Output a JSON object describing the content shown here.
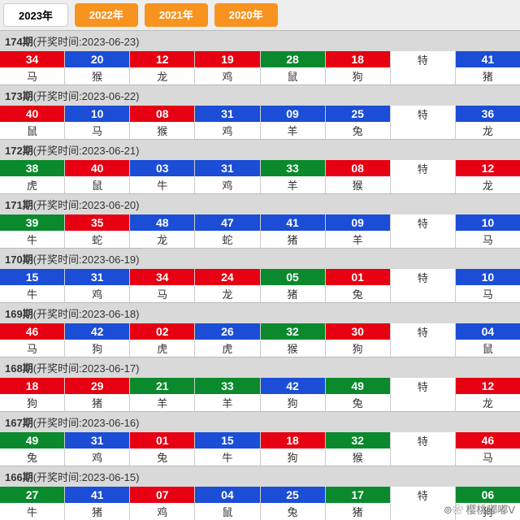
{
  "tabs": [
    {
      "label": "2023年",
      "active": true
    },
    {
      "label": "2022年",
      "active": false
    },
    {
      "label": "2021年",
      "active": false
    },
    {
      "label": "2020年",
      "active": false
    }
  ],
  "special_label": "特",
  "watermark": "⊚❀ 樱桃嘟嘟V",
  "colors": {
    "red": "#e60012",
    "blue": "#1b4dd6",
    "green": "#0a8a2d"
  },
  "issues": [
    {
      "issue": "174期",
      "date": "2023-06-23",
      "numbers": [
        {
          "n": "34",
          "c": "red",
          "z": "马"
        },
        {
          "n": "20",
          "c": "blue",
          "z": "猴"
        },
        {
          "n": "12",
          "c": "red",
          "z": "龙"
        },
        {
          "n": "19",
          "c": "red",
          "z": "鸡"
        },
        {
          "n": "28",
          "c": "green",
          "z": "鼠"
        },
        {
          "n": "18",
          "c": "red",
          "z": "狗"
        }
      ],
      "special": {
        "n": "41",
        "c": "blue",
        "z": "猪"
      }
    },
    {
      "issue": "173期",
      "date": "2023-06-22",
      "numbers": [
        {
          "n": "40",
          "c": "red",
          "z": "鼠"
        },
        {
          "n": "10",
          "c": "blue",
          "z": "马"
        },
        {
          "n": "08",
          "c": "red",
          "z": "猴"
        },
        {
          "n": "31",
          "c": "blue",
          "z": "鸡"
        },
        {
          "n": "09",
          "c": "blue",
          "z": "羊"
        },
        {
          "n": "25",
          "c": "blue",
          "z": "兔"
        }
      ],
      "special": {
        "n": "36",
        "c": "blue",
        "z": "龙"
      }
    },
    {
      "issue": "172期",
      "date": "2023-06-21",
      "numbers": [
        {
          "n": "38",
          "c": "green",
          "z": "虎"
        },
        {
          "n": "40",
          "c": "red",
          "z": "鼠"
        },
        {
          "n": "03",
          "c": "blue",
          "z": "牛"
        },
        {
          "n": "31",
          "c": "blue",
          "z": "鸡"
        },
        {
          "n": "33",
          "c": "green",
          "z": "羊"
        },
        {
          "n": "08",
          "c": "red",
          "z": "猴"
        }
      ],
      "special": {
        "n": "12",
        "c": "red",
        "z": "龙"
      }
    },
    {
      "issue": "171期",
      "date": "2023-06-20",
      "numbers": [
        {
          "n": "39",
          "c": "green",
          "z": "牛"
        },
        {
          "n": "35",
          "c": "red",
          "z": "蛇"
        },
        {
          "n": "48",
          "c": "blue",
          "z": "龙"
        },
        {
          "n": "47",
          "c": "blue",
          "z": "蛇"
        },
        {
          "n": "41",
          "c": "blue",
          "z": "猪"
        },
        {
          "n": "09",
          "c": "blue",
          "z": "羊"
        }
      ],
      "special": {
        "n": "10",
        "c": "blue",
        "z": "马"
      }
    },
    {
      "issue": "170期",
      "date": "2023-06-19",
      "numbers": [
        {
          "n": "15",
          "c": "blue",
          "z": "牛"
        },
        {
          "n": "31",
          "c": "blue",
          "z": "鸡"
        },
        {
          "n": "34",
          "c": "red",
          "z": "马"
        },
        {
          "n": "24",
          "c": "red",
          "z": "龙"
        },
        {
          "n": "05",
          "c": "green",
          "z": "猪"
        },
        {
          "n": "01",
          "c": "red",
          "z": "兔"
        }
      ],
      "special": {
        "n": "10",
        "c": "blue",
        "z": "马"
      }
    },
    {
      "issue": "169期",
      "date": "2023-06-18",
      "numbers": [
        {
          "n": "46",
          "c": "red",
          "z": "马"
        },
        {
          "n": "42",
          "c": "blue",
          "z": "狗"
        },
        {
          "n": "02",
          "c": "red",
          "z": "虎"
        },
        {
          "n": "26",
          "c": "blue",
          "z": "虎"
        },
        {
          "n": "32",
          "c": "green",
          "z": "猴"
        },
        {
          "n": "30",
          "c": "red",
          "z": "狗"
        }
      ],
      "special": {
        "n": "04",
        "c": "blue",
        "z": "鼠"
      }
    },
    {
      "issue": "168期",
      "date": "2023-06-17",
      "numbers": [
        {
          "n": "18",
          "c": "red",
          "z": "狗"
        },
        {
          "n": "29",
          "c": "red",
          "z": "猪"
        },
        {
          "n": "21",
          "c": "green",
          "z": "羊"
        },
        {
          "n": "33",
          "c": "green",
          "z": "羊"
        },
        {
          "n": "42",
          "c": "blue",
          "z": "狗"
        },
        {
          "n": "49",
          "c": "green",
          "z": "兔"
        }
      ],
      "special": {
        "n": "12",
        "c": "red",
        "z": "龙"
      }
    },
    {
      "issue": "167期",
      "date": "2023-06-16",
      "numbers": [
        {
          "n": "49",
          "c": "green",
          "z": "兔"
        },
        {
          "n": "31",
          "c": "blue",
          "z": "鸡"
        },
        {
          "n": "01",
          "c": "red",
          "z": "兔"
        },
        {
          "n": "15",
          "c": "blue",
          "z": "牛"
        },
        {
          "n": "18",
          "c": "red",
          "z": "狗"
        },
        {
          "n": "32",
          "c": "green",
          "z": "猴"
        }
      ],
      "special": {
        "n": "46",
        "c": "red",
        "z": "马"
      }
    },
    {
      "issue": "166期",
      "date": "2023-06-15",
      "numbers": [
        {
          "n": "27",
          "c": "green",
          "z": "牛"
        },
        {
          "n": "41",
          "c": "blue",
          "z": "猪"
        },
        {
          "n": "07",
          "c": "red",
          "z": "鸡"
        },
        {
          "n": "04",
          "c": "blue",
          "z": "鼠"
        },
        {
          "n": "25",
          "c": "blue",
          "z": "兔"
        },
        {
          "n": "17",
          "c": "green",
          "z": "猪"
        }
      ],
      "special": {
        "n": "06",
        "c": "green",
        "z": "狗"
      }
    }
  ]
}
